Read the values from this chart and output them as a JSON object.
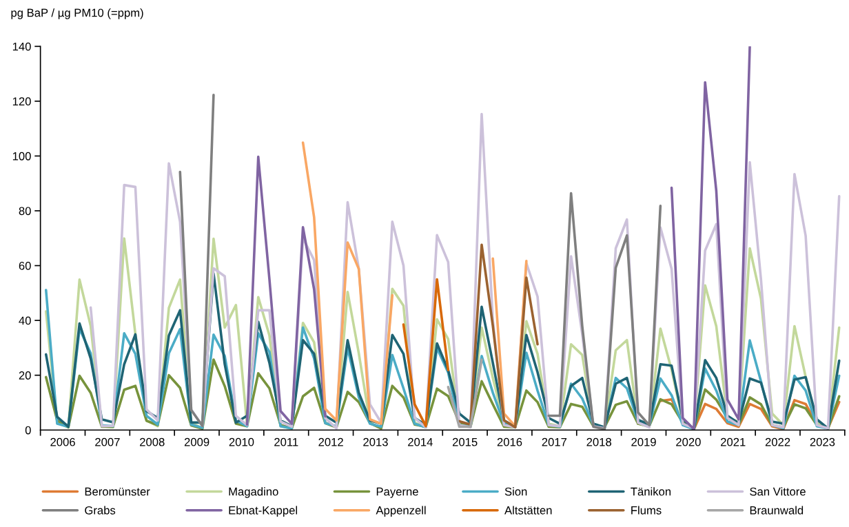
{
  "chart_data": {
    "type": "line",
    "ylabel": "pg BaP / µg PM10 (=ppm)",
    "x": [
      2005.625,
      2005.875,
      2006.125,
      2006.375,
      2006.625,
      2006.875,
      2007.125,
      2007.375,
      2007.625,
      2007.875,
      2008.125,
      2008.375,
      2008.625,
      2008.875,
      2009.125,
      2009.375,
      2009.625,
      2009.875,
      2010.125,
      2010.375,
      2010.625,
      2010.875,
      2011.125,
      2011.375,
      2011.625,
      2011.875,
      2012.125,
      2012.375,
      2012.625,
      2012.875,
      2013.125,
      2013.375,
      2013.625,
      2013.875,
      2014.125,
      2014.375,
      2014.625,
      2014.875,
      2015.125,
      2015.375,
      2015.625,
      2015.875,
      2016.125,
      2016.375,
      2016.625,
      2016.875,
      2017.125,
      2017.375,
      2017.625,
      2017.875,
      2018.125,
      2018.375,
      2018.625,
      2018.875,
      2019.125,
      2019.375,
      2019.625,
      2019.875,
      2020.125,
      2020.375,
      2020.625,
      2020.875,
      2021.125,
      2021.375,
      2021.625,
      2021.875,
      2022.125,
      2022.375,
      2022.625,
      2022.875,
      2023.125,
      2023.375
    ],
    "xlim": [
      2005.5,
      2023.5
    ],
    "xticks": [
      {
        "value": 2005.5,
        "label": null
      },
      2006,
      {
        "value": 2006.5,
        "label": null
      },
      2007,
      {
        "value": 2007.5,
        "label": null
      },
      2008,
      {
        "value": 2008.5,
        "label": null
      },
      2009,
      {
        "value": 2009.5,
        "label": null
      },
      2010,
      {
        "value": 2010.5,
        "label": null
      },
      2011,
      {
        "value": 2011.5,
        "label": null
      },
      2012,
      {
        "value": 2012.5,
        "label": null
      },
      2013,
      {
        "value": 2013.5,
        "label": null
      },
      2014,
      {
        "value": 2014.5,
        "label": null
      },
      2015,
      {
        "value": 2015.5,
        "label": null
      },
      2016,
      {
        "value": 2016.5,
        "label": null
      },
      2017,
      {
        "value": 2017.5,
        "label": null
      },
      2018,
      {
        "value": 2018.5,
        "label": null
      },
      2019,
      {
        "value": 2019.5,
        "label": null
      },
      2020,
      {
        "value": 2020.5,
        "label": null
      },
      2021,
      {
        "value": 2021.5,
        "label": null
      },
      2022,
      {
        "value": 2022.5,
        "label": null
      },
      2023,
      {
        "value": 2023.5,
        "label": null
      }
    ],
    "ylim": [
      0,
      140
    ],
    "yticks": [
      0,
      20,
      40,
      60,
      80,
      100,
      120,
      140
    ],
    "grid": false,
    "legend": "bottom",
    "marker": "none",
    "line_style": "solid",
    "series": [
      {
        "name": "Beromünster",
        "color": "#de7b34",
        "values": [
          null,
          null,
          null,
          null,
          null,
          null,
          null,
          null,
          null,
          null,
          null,
          null,
          null,
          null,
          null,
          null,
          null,
          null,
          null,
          null,
          null,
          null,
          null,
          null,
          null,
          null,
          null,
          null,
          null,
          null,
          null,
          null,
          null,
          null,
          null,
          null,
          null,
          null,
          null,
          null,
          null,
          null,
          null,
          null,
          null,
          null,
          null,
          null,
          null,
          null,
          null,
          null,
          null,
          null,
          null,
          10.6,
          11.2,
          2.7,
          0.3,
          9.5,
          7.7,
          2.5,
          1.2,
          9.5,
          7.7,
          1.4,
          0.3,
          10.9,
          9.5,
          2,
          0.6,
          10.2
        ]
      },
      {
        "name": "Magadino",
        "color": "#c3d89b",
        "values": [
          43.3,
          2.7,
          1.0,
          54.9,
          38,
          1.4,
          1.0,
          69.9,
          35,
          3.5,
          1.4,
          44.6,
          54.9,
          2.7,
          0.6,
          69.8,
          37.4,
          45.6,
          1.8,
          48.5,
          34.5,
          1.4,
          0.6,
          39.1,
          32,
          2.7,
          1.0,
          50.4,
          28,
          2.7,
          0.6,
          51.5,
          45.4,
          2.7,
          1.0,
          40.4,
          33.2,
          2.3,
          1.4,
          37.4,
          19,
          2.3,
          1.0,
          39.7,
          27.8,
          2.3,
          1.4,
          31.3,
          27.4,
          1.8,
          0.6,
          29.1,
          32.8,
          2.3,
          1.2,
          37,
          22,
          3.1,
          0.6,
          52.8,
          37.9,
          4.4,
          3.1,
          66.3,
          47.9,
          6,
          1.8,
          37.9,
          19.4,
          2.7,
          0.6,
          37.4
        ]
      },
      {
        "name": "Payerne",
        "color": "#77933c",
        "values": [
          19.3,
          3.5,
          1.0,
          19.8,
          13.6,
          1.2,
          1.2,
          14.7,
          16.1,
          3.4,
          1.8,
          20,
          15.4,
          1.7,
          0.5,
          25.7,
          16,
          2.3,
          1.4,
          20.7,
          15.2,
          1.8,
          0.6,
          12.3,
          15.4,
          2.5,
          1.0,
          13.9,
          10.2,
          2.5,
          0.6,
          16.1,
          11.9,
          2,
          1.2,
          15.1,
          12.4,
          2.7,
          1.2,
          17.8,
          9.4,
          1.2,
          1.0,
          14.4,
          10.2,
          1.2,
          1.0,
          9.5,
          8.5,
          1.4,
          1.0,
          9.2,
          10.5,
          2.3,
          1.4,
          11.2,
          9.4,
          2.7,
          0.3,
          14.8,
          11.1,
          4.4,
          1.8,
          11.9,
          9.4,
          1.8,
          1.0,
          9.4,
          7.9,
          1.8,
          0.6,
          12.3
        ]
      },
      {
        "name": "Sion",
        "color": "#4bacc6",
        "values": [
          51.1,
          2.3,
          1.2,
          37,
          28,
          1.7,
          1.4,
          35.3,
          27.8,
          5.2,
          2,
          28,
          36.8,
          2,
          0.8,
          34.8,
          27,
          3.5,
          1.4,
          35.3,
          28.5,
          1.4,
          0.6,
          37.4,
          26.1,
          2.5,
          1.4,
          30,
          12,
          2.3,
          1.2,
          27.4,
          15.2,
          2.3,
          1.0,
          29.9,
          21,
          1.8,
          1.2,
          27,
          13.6,
          2.3,
          1.0,
          28.2,
          14.4,
          1.8,
          1.2,
          16.9,
          11.5,
          1.8,
          0.6,
          19,
          15.2,
          3.1,
          1.4,
          18.8,
          12.7,
          1.8,
          0.3,
          22.4,
          14.4,
          3.1,
          1.8,
          32.7,
          17.8,
          1.8,
          0.6,
          19.8,
          14.4,
          1.4,
          0.6,
          19.8
        ]
      },
      {
        "name": "Tänikon",
        "color": "#1f6474",
        "values": [
          27.6,
          4.8,
          1.2,
          38.9,
          26.1,
          3.9,
          2.8,
          24,
          34.9,
          6.9,
          4.4,
          34.5,
          43.7,
          2.8,
          2.7,
          57.1,
          24,
          2.7,
          5.2,
          39.5,
          24.5,
          3.5,
          1.4,
          32.8,
          27.8,
          5.2,
          2.7,
          32.8,
          13.6,
          3.5,
          2.3,
          34.7,
          27.8,
          4.4,
          1.8,
          31.6,
          21.9,
          6,
          2.7,
          45,
          24.5,
          3.5,
          1.2,
          34.7,
          21.1,
          4.4,
          2.3,
          16.1,
          19,
          2.3,
          1.0,
          16.9,
          19,
          3.7,
          2,
          24,
          23.5,
          3.9,
          0.3,
          25.5,
          19,
          5.2,
          2.5,
          18.8,
          17.3,
          3.1,
          2.3,
          18.4,
          19.3,
          3.9,
          0.6,
          25.3
        ]
      },
      {
        "name": "San Vittore",
        "color": "#ccc1da",
        "values": [
          null,
          null,
          null,
          null,
          44.7,
          1.4,
          1.5,
          89.4,
          88.7,
          7.5,
          3.5,
          97.3,
          76,
          7.5,
          1.5,
          59,
          56.1,
          5.2,
          1.8,
          43.7,
          43.7,
          3.1,
          1.2,
          70,
          62,
          4.4,
          0.6,
          83.1,
          58.8,
          9.4,
          2.7,
          76,
          60,
          4.4,
          1.0,
          71.1,
          61.3,
          1.8,
          1.0,
          115.3,
          40,
          1.8,
          1.0,
          60.9,
          48.7,
          1.8,
          1.4,
          63.4,
          35,
          1.4,
          0.6,
          66.3,
          76.8,
          2.7,
          1.0,
          73.9,
          58.8,
          2.3,
          0.6,
          65.5,
          75.1,
          4.4,
          1.8,
          97.7,
          55,
          1.8,
          1.0,
          93.4,
          70.9,
          1.8,
          0.6,
          85.3
        ]
      },
      {
        "name": "Grabs",
        "color": "#7f7f7f",
        "values": [
          null,
          null,
          null,
          null,
          null,
          null,
          null,
          null,
          null,
          null,
          null,
          null,
          94.2,
          7.3,
          1.5,
          122.3,
          null,
          null,
          null,
          null,
          null,
          null,
          null,
          null,
          null,
          null,
          null,
          null,
          null,
          null,
          null,
          null,
          null,
          null,
          null,
          null,
          null,
          null,
          null,
          null,
          null,
          null,
          null,
          null,
          null,
          5.2,
          5.2,
          86.4,
          38,
          1.2,
          0.3,
          59.2,
          71,
          6.4,
          1.8,
          81.8,
          null,
          null,
          null,
          null,
          null,
          null,
          null,
          null,
          null,
          null,
          null,
          null,
          null,
          null,
          null,
          null
        ]
      },
      {
        "name": "Ebnat-Kappel",
        "color": "#8064a2",
        "values": [
          null,
          null,
          null,
          null,
          null,
          null,
          null,
          null,
          null,
          null,
          null,
          null,
          null,
          null,
          null,
          null,
          null,
          null,
          2,
          99.7,
          55,
          6.9,
          2.3,
          74,
          51.3,
          5,
          null,
          null,
          null,
          null,
          null,
          null,
          null,
          null,
          null,
          null,
          null,
          null,
          null,
          null,
          null,
          null,
          null,
          null,
          null,
          null,
          null,
          null,
          null,
          null,
          null,
          null,
          null,
          null,
          null,
          null,
          88.4,
          4.4,
          0.3,
          126.9,
          87.3,
          11.1,
          3.9,
          139.9,
          null,
          null,
          null,
          null,
          null,
          null,
          null,
          null
        ]
      },
      {
        "name": "Appenzell",
        "color": "#f9a764",
        "values": [
          null,
          null,
          null,
          null,
          null,
          null,
          null,
          null,
          null,
          null,
          null,
          null,
          null,
          null,
          null,
          null,
          null,
          null,
          null,
          null,
          null,
          null,
          null,
          104.9,
          77.6,
          7.7,
          3.5,
          68.4,
          58.8,
          3.9,
          2.3,
          49.2,
          null,
          null,
          null,
          null,
          null,
          null,
          null,
          null,
          62.6,
          6,
          1.4,
          61.7,
          null,
          null,
          null,
          null,
          null,
          null,
          null,
          null,
          null,
          null,
          null,
          null,
          null,
          null,
          null,
          null,
          null,
          null,
          null,
          null,
          null,
          null,
          null,
          null,
          null,
          null,
          null,
          null
        ]
      },
      {
        "name": "Altstätten",
        "color": "#d8690a",
        "values": [
          null,
          null,
          null,
          null,
          null,
          null,
          null,
          null,
          null,
          null,
          null,
          null,
          null,
          null,
          null,
          null,
          null,
          null,
          null,
          null,
          null,
          null,
          null,
          null,
          null,
          null,
          null,
          null,
          null,
          null,
          null,
          null,
          38.5,
          9.4,
          1.4,
          55,
          21.9,
          null,
          null,
          null,
          null,
          null,
          null,
          null,
          null,
          null,
          null,
          null,
          null,
          null,
          null,
          null,
          null,
          null,
          null,
          null,
          null,
          null,
          null,
          null,
          null,
          null,
          null,
          null,
          null,
          null,
          null,
          null,
          null,
          null,
          null,
          null
        ]
      },
      {
        "name": "Flums",
        "color": "#9b6230",
        "values": [
          null,
          null,
          null,
          null,
          null,
          null,
          null,
          null,
          null,
          null,
          null,
          null,
          null,
          null,
          null,
          null,
          null,
          null,
          null,
          null,
          null,
          null,
          null,
          null,
          null,
          null,
          null,
          null,
          null,
          null,
          null,
          null,
          null,
          null,
          null,
          null,
          null,
          3.2,
          2,
          67.6,
          38,
          3.5,
          1,
          55.6,
          31.3,
          null,
          null,
          null,
          null,
          null,
          null,
          null,
          null,
          null,
          null,
          null,
          null,
          null,
          null,
          null,
          null,
          null,
          null,
          null,
          null,
          null,
          null,
          null,
          null,
          null,
          null,
          null
        ]
      },
      {
        "name": "Braunwald",
        "color": "#a6a6a6",
        "values": [
          null,
          null,
          null,
          null,
          null,
          null,
          null,
          null,
          null,
          null,
          null,
          null,
          null,
          null,
          null,
          null,
          null,
          null,
          null,
          null,
          null,
          null,
          null,
          null,
          null,
          null,
          null,
          null,
          null,
          null,
          null,
          null,
          null,
          null,
          null,
          null,
          15.7,
          1.2,
          1.2,
          25.7,
          null,
          null,
          null,
          null,
          null,
          null,
          null,
          null,
          null,
          null,
          null,
          null,
          null,
          null,
          null,
          null,
          null,
          null,
          null,
          null,
          null,
          null,
          null,
          null,
          null,
          null,
          null,
          null,
          null,
          null,
          null,
          null
        ]
      }
    ]
  }
}
